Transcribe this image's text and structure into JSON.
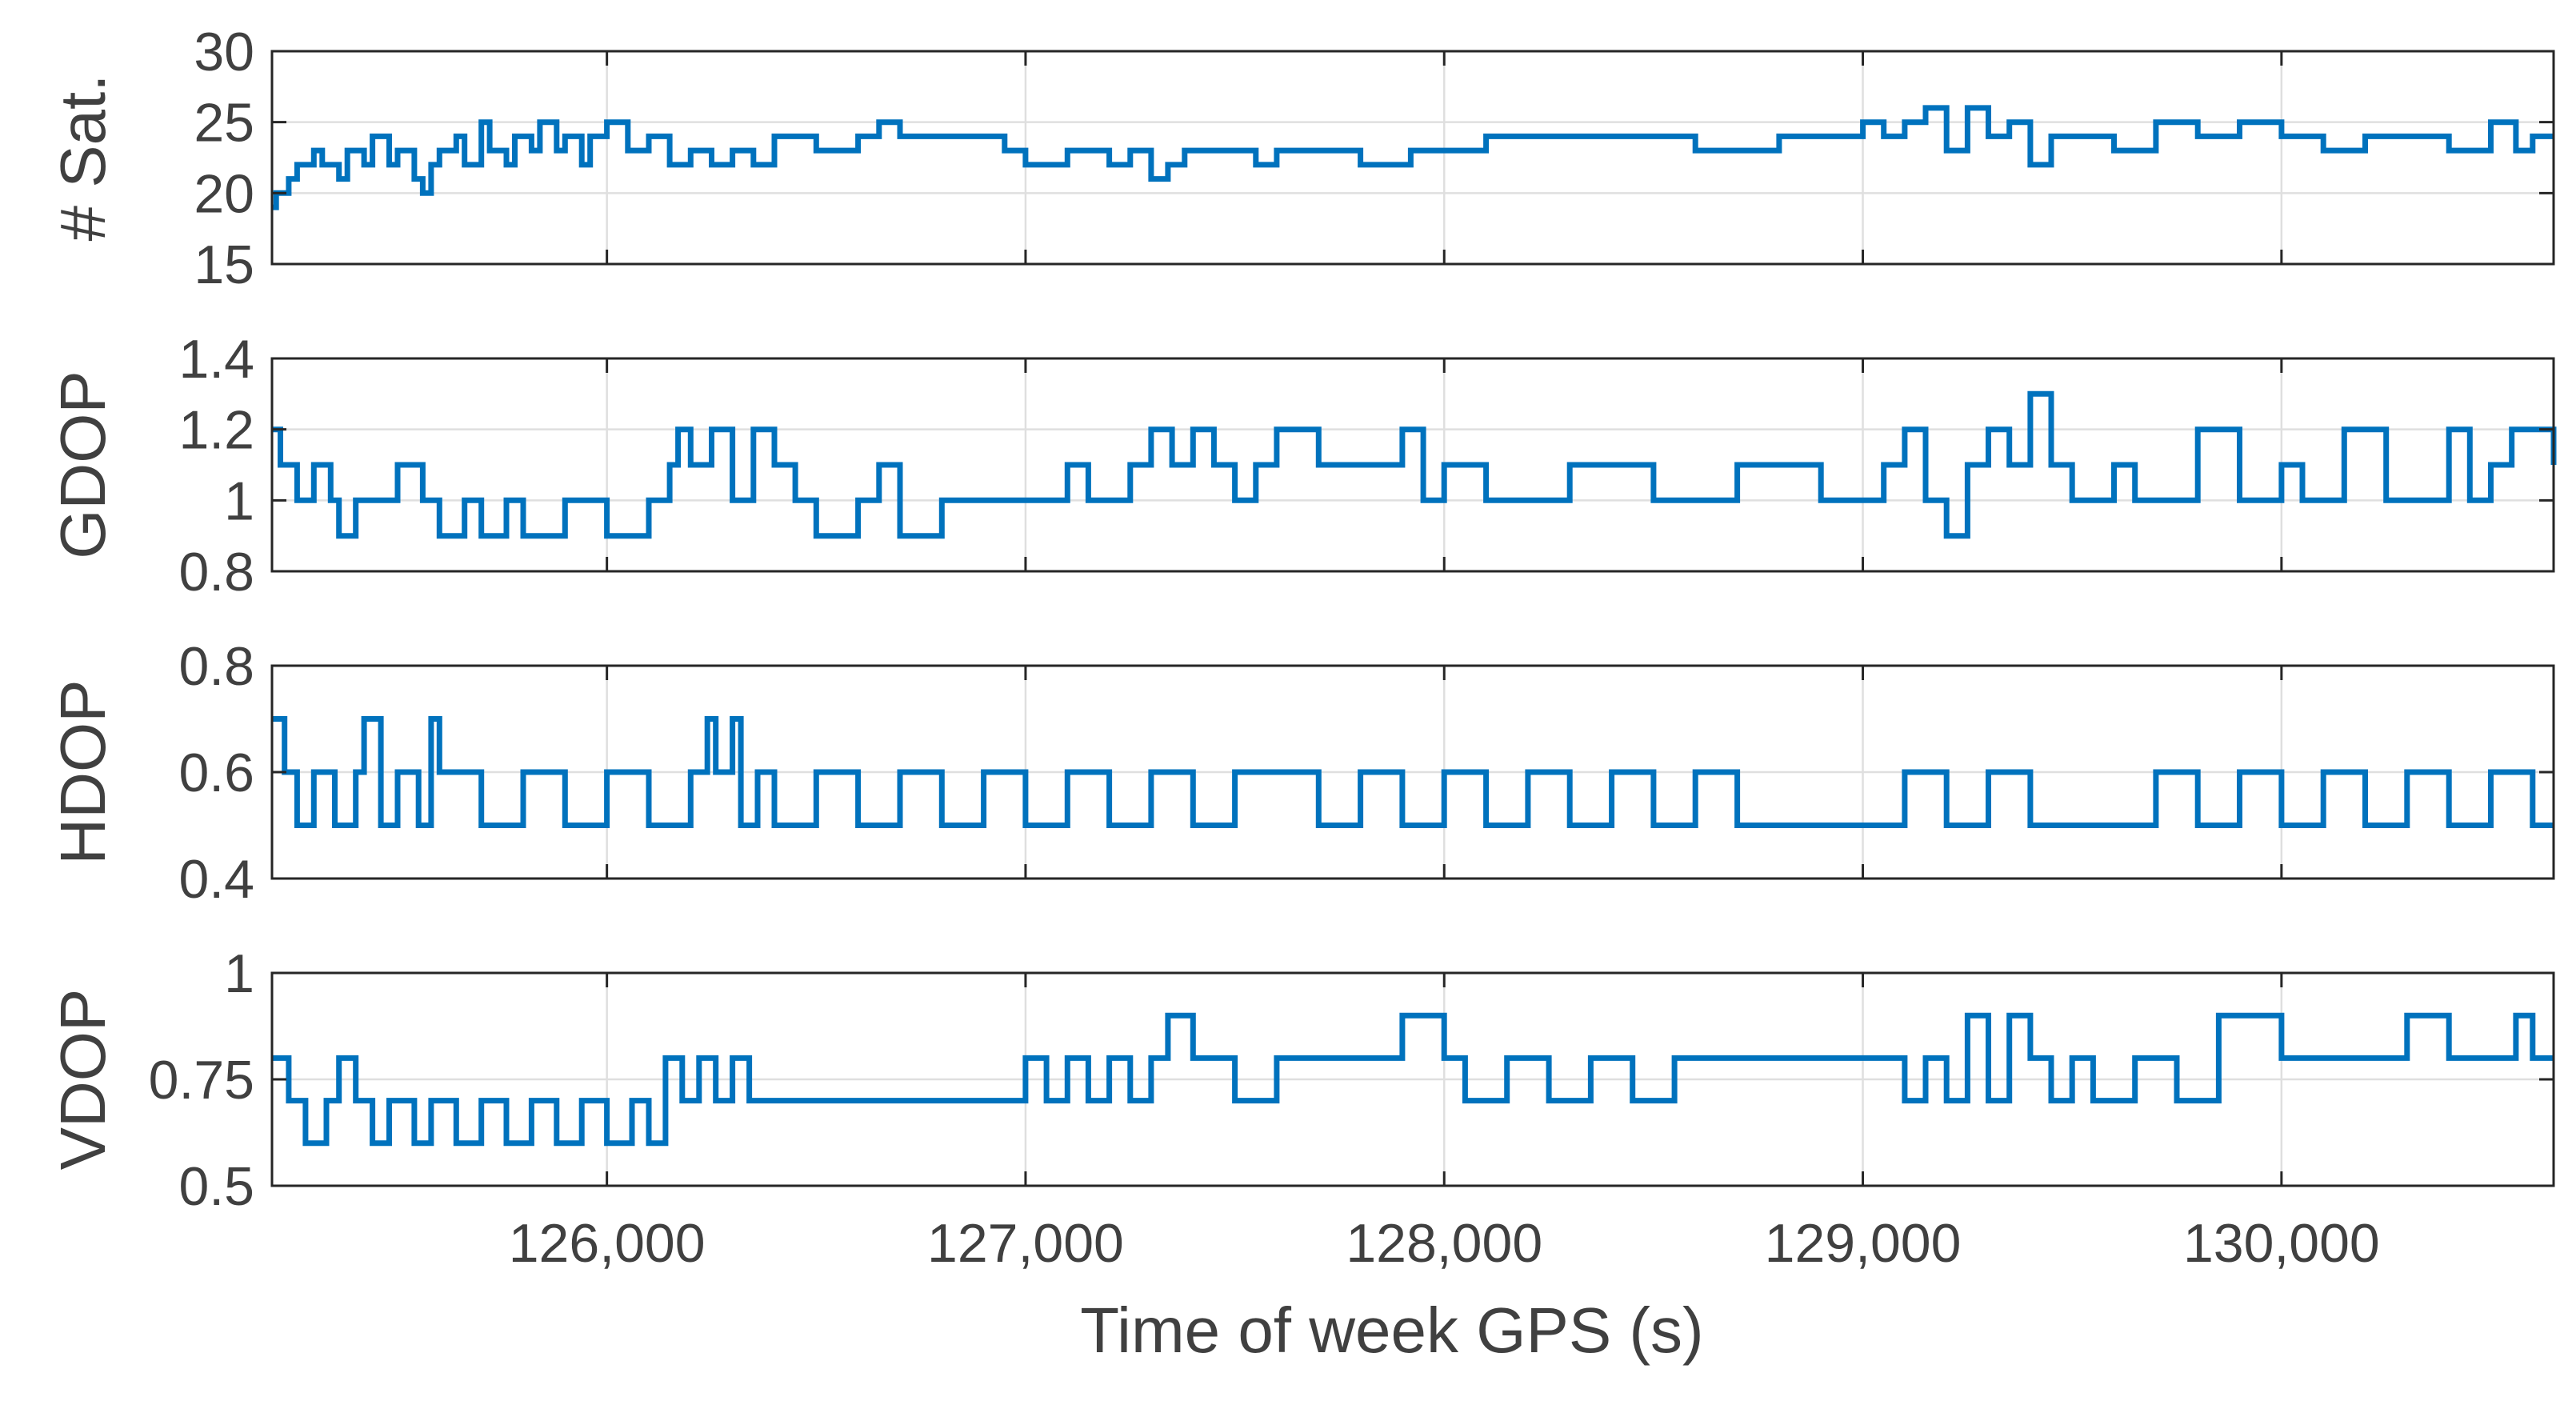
{
  "chart_data": {
    "type": "line",
    "layout": "4 vertically stacked subplots with shared x axis",
    "xlabel": "Time of week GPS (s)",
    "xlim": [
      125200,
      130650
    ],
    "xticks": [
      126000,
      127000,
      128000,
      129000,
      130000
    ],
    "xtick_labels": [
      "126,000",
      "127,000",
      "128,000",
      "129,000",
      "130,000"
    ],
    "grid": true,
    "line_color": "#0072BD",
    "panels": [
      {
        "ylabel": "# Sat.",
        "ylim": [
          15,
          30
        ],
        "yticks": [
          15,
          20,
          25,
          30
        ],
        "ytick_labels": [
          "15",
          "20",
          "25",
          "30"
        ],
        "x": [
          125200,
          125210,
          125240,
          125260,
          125300,
          125320,
          125360,
          125380,
          125420,
          125440,
          125480,
          125500,
          125540,
          125560,
          125580,
          125600,
          125640,
          125660,
          125700,
          125720,
          125760,
          125780,
          125820,
          125840,
          125880,
          125900,
          125940,
          125960,
          126000,
          126050,
          126100,
          126150,
          126200,
          126250,
          126300,
          126350,
          126400,
          126500,
          126600,
          126650,
          126700,
          126850,
          126950,
          127000,
          127100,
          127200,
          127250,
          127300,
          127340,
          127380,
          127420,
          127550,
          127600,
          127800,
          127900,
          127920,
          128000,
          128100,
          128300,
          128500,
          128600,
          128800,
          129000,
          129050,
          129100,
          129150,
          129200,
          129250,
          129300,
          129350,
          129400,
          129450,
          129500,
          129600,
          129700,
          129800,
          129900,
          130000,
          130100,
          130200,
          130300,
          130400,
          130500,
          130560,
          130600,
          130650
        ],
        "y": [
          19,
          20,
          21,
          22,
          23,
          22,
          21,
          23,
          22,
          24,
          22,
          23,
          21,
          20,
          22,
          23,
          24,
          22,
          25,
          23,
          22,
          24,
          23,
          25,
          23,
          24,
          22,
          24,
          25,
          23,
          24,
          22,
          23,
          22,
          23,
          22,
          24,
          23,
          24,
          25,
          24,
          24,
          23,
          22,
          23,
          22,
          23,
          21,
          22,
          23,
          23,
          22,
          23,
          22,
          22,
          23,
          23,
          24,
          24,
          24,
          23,
          24,
          25,
          24,
          25,
          26,
          23,
          26,
          24,
          25,
          22,
          24,
          24,
          23,
          25,
          24,
          25,
          24,
          23,
          24,
          24,
          23,
          25,
          23,
          24,
          24
        ]
      },
      {
        "ylabel": "GDOP",
        "ylim": [
          0.8,
          1.4
        ],
        "yticks": [
          0.8,
          1,
          1.2,
          1.4
        ],
        "ytick_labels": [
          "0.8",
          "1",
          "1.2",
          "1.4"
        ],
        "x": [
          125200,
          125220,
          125260,
          125300,
          125340,
          125360,
          125400,
          125460,
          125500,
          125560,
          125600,
          125660,
          125700,
          125760,
          125800,
          125900,
          126000,
          126100,
          126150,
          126170,
          126200,
          126250,
          126300,
          126350,
          126400,
          126450,
          126500,
          126600,
          126650,
          126700,
          126800,
          126950,
          127000,
          127100,
          127150,
          127250,
          127300,
          127350,
          127400,
          127450,
          127500,
          127550,
          127600,
          127700,
          127800,
          127900,
          127950,
          128000,
          128100,
          128300,
          128500,
          128700,
          128900,
          129000,
          129050,
          129100,
          129150,
          129200,
          129250,
          129300,
          129350,
          129400,
          129450,
          129500,
          129600,
          129650,
          129800,
          129900,
          130000,
          130050,
          130150,
          130250,
          130400,
          130450,
          130500,
          130550,
          130600,
          130650
        ],
        "y": [
          1.2,
          1.1,
          1.0,
          1.1,
          1.0,
          0.9,
          1.0,
          1.0,
          1.1,
          1.0,
          0.9,
          1.0,
          0.9,
          1.0,
          0.9,
          1.0,
          0.9,
          1.0,
          1.1,
          1.2,
          1.1,
          1.2,
          1.0,
          1.2,
          1.1,
          1.0,
          0.9,
          1.0,
          1.1,
          0.9,
          1.0,
          1.0,
          1.0,
          1.1,
          1.0,
          1.1,
          1.2,
          1.1,
          1.2,
          1.1,
          1.0,
          1.1,
          1.2,
          1.1,
          1.1,
          1.2,
          1.0,
          1.1,
          1.0,
          1.1,
          1.0,
          1.1,
          1.0,
          1.0,
          1.1,
          1.2,
          1.0,
          0.9,
          1.1,
          1.2,
          1.1,
          1.3,
          1.1,
          1.0,
          1.1,
          1.0,
          1.2,
          1.0,
          1.1,
          1.0,
          1.2,
          1.0,
          1.2,
          1.0,
          1.1,
          1.2,
          1.2,
          1.1
        ]
      },
      {
        "ylabel": "HDOP",
        "ylim": [
          0.4,
          0.8
        ],
        "yticks": [
          0.4,
          0.6,
          0.8
        ],
        "ytick_labels": [
          "0.4",
          "0.6",
          "0.8"
        ],
        "x": [
          125200,
          125230,
          125260,
          125300,
          125350,
          125400,
          125420,
          125460,
          125500,
          125550,
          125580,
          125600,
          125700,
          125800,
          125900,
          126000,
          126100,
          126200,
          126240,
          126260,
          126300,
          126320,
          126360,
          126400,
          126500,
          126600,
          126700,
          126800,
          126900,
          127000,
          127100,
          127200,
          127300,
          127400,
          127500,
          127600,
          127700,
          127800,
          127900,
          128000,
          128100,
          128200,
          128300,
          128400,
          128500,
          128600,
          128700,
          128800,
          128900,
          129000,
          129100,
          129200,
          129300,
          129400,
          129500,
          129600,
          129700,
          129800,
          129900,
          130000,
          130100,
          130200,
          130300,
          130400,
          130500,
          130600,
          130650
        ],
        "y": [
          0.7,
          0.6,
          0.5,
          0.6,
          0.5,
          0.6,
          0.7,
          0.5,
          0.6,
          0.5,
          0.7,
          0.6,
          0.5,
          0.6,
          0.5,
          0.6,
          0.5,
          0.6,
          0.7,
          0.6,
          0.7,
          0.5,
          0.6,
          0.5,
          0.6,
          0.5,
          0.6,
          0.5,
          0.6,
          0.5,
          0.6,
          0.5,
          0.6,
          0.5,
          0.6,
          0.6,
          0.5,
          0.6,
          0.5,
          0.6,
          0.5,
          0.6,
          0.5,
          0.6,
          0.5,
          0.6,
          0.5,
          0.5,
          0.5,
          0.5,
          0.6,
          0.5,
          0.6,
          0.5,
          0.5,
          0.5,
          0.6,
          0.5,
          0.6,
          0.5,
          0.6,
          0.5,
          0.6,
          0.5,
          0.6,
          0.5,
          0.5
        ]
      },
      {
        "ylabel": "VDOP",
        "ylim": [
          0.5,
          1
        ],
        "yticks": [
          0.5,
          0.75,
          1
        ],
        "ytick_labels": [
          "0.5",
          "0.75",
          "1"
        ],
        "x": [
          125200,
          125240,
          125280,
          125330,
          125360,
          125400,
          125440,
          125480,
          125540,
          125580,
          125640,
          125700,
          125760,
          125820,
          125880,
          125940,
          126000,
          126060,
          126100,
          126140,
          126180,
          126220,
          126260,
          126300,
          126340,
          126400,
          126600,
          126800,
          126950,
          127000,
          127050,
          127100,
          127150,
          127200,
          127250,
          127300,
          127340,
          127400,
          127500,
          127600,
          127700,
          127800,
          127900,
          128000,
          128050,
          128150,
          128250,
          128350,
          128450,
          128550,
          128700,
          128900,
          129000,
          129100,
          129150,
          129200,
          129250,
          129300,
          129350,
          129400,
          129450,
          129500,
          129550,
          129650,
          129750,
          129850,
          130000,
          130100,
          130200,
          130300,
          130400,
          130450,
          130500,
          130560,
          130600,
          130650
        ],
        "y": [
          0.8,
          0.7,
          0.6,
          0.7,
          0.8,
          0.7,
          0.6,
          0.7,
          0.6,
          0.7,
          0.6,
          0.7,
          0.6,
          0.7,
          0.6,
          0.7,
          0.6,
          0.7,
          0.6,
          0.8,
          0.7,
          0.8,
          0.7,
          0.8,
          0.7,
          0.7,
          0.7,
          0.7,
          0.7,
          0.8,
          0.7,
          0.8,
          0.7,
          0.8,
          0.7,
          0.8,
          0.9,
          0.8,
          0.7,
          0.8,
          0.8,
          0.8,
          0.9,
          0.8,
          0.7,
          0.8,
          0.7,
          0.8,
          0.7,
          0.8,
          0.8,
          0.8,
          0.8,
          0.7,
          0.8,
          0.7,
          0.9,
          0.7,
          0.9,
          0.8,
          0.7,
          0.8,
          0.7,
          0.8,
          0.7,
          0.9,
          0.8,
          0.8,
          0.8,
          0.9,
          0.8,
          0.8,
          0.8,
          0.9,
          0.8,
          0.8
        ]
      }
    ]
  }
}
